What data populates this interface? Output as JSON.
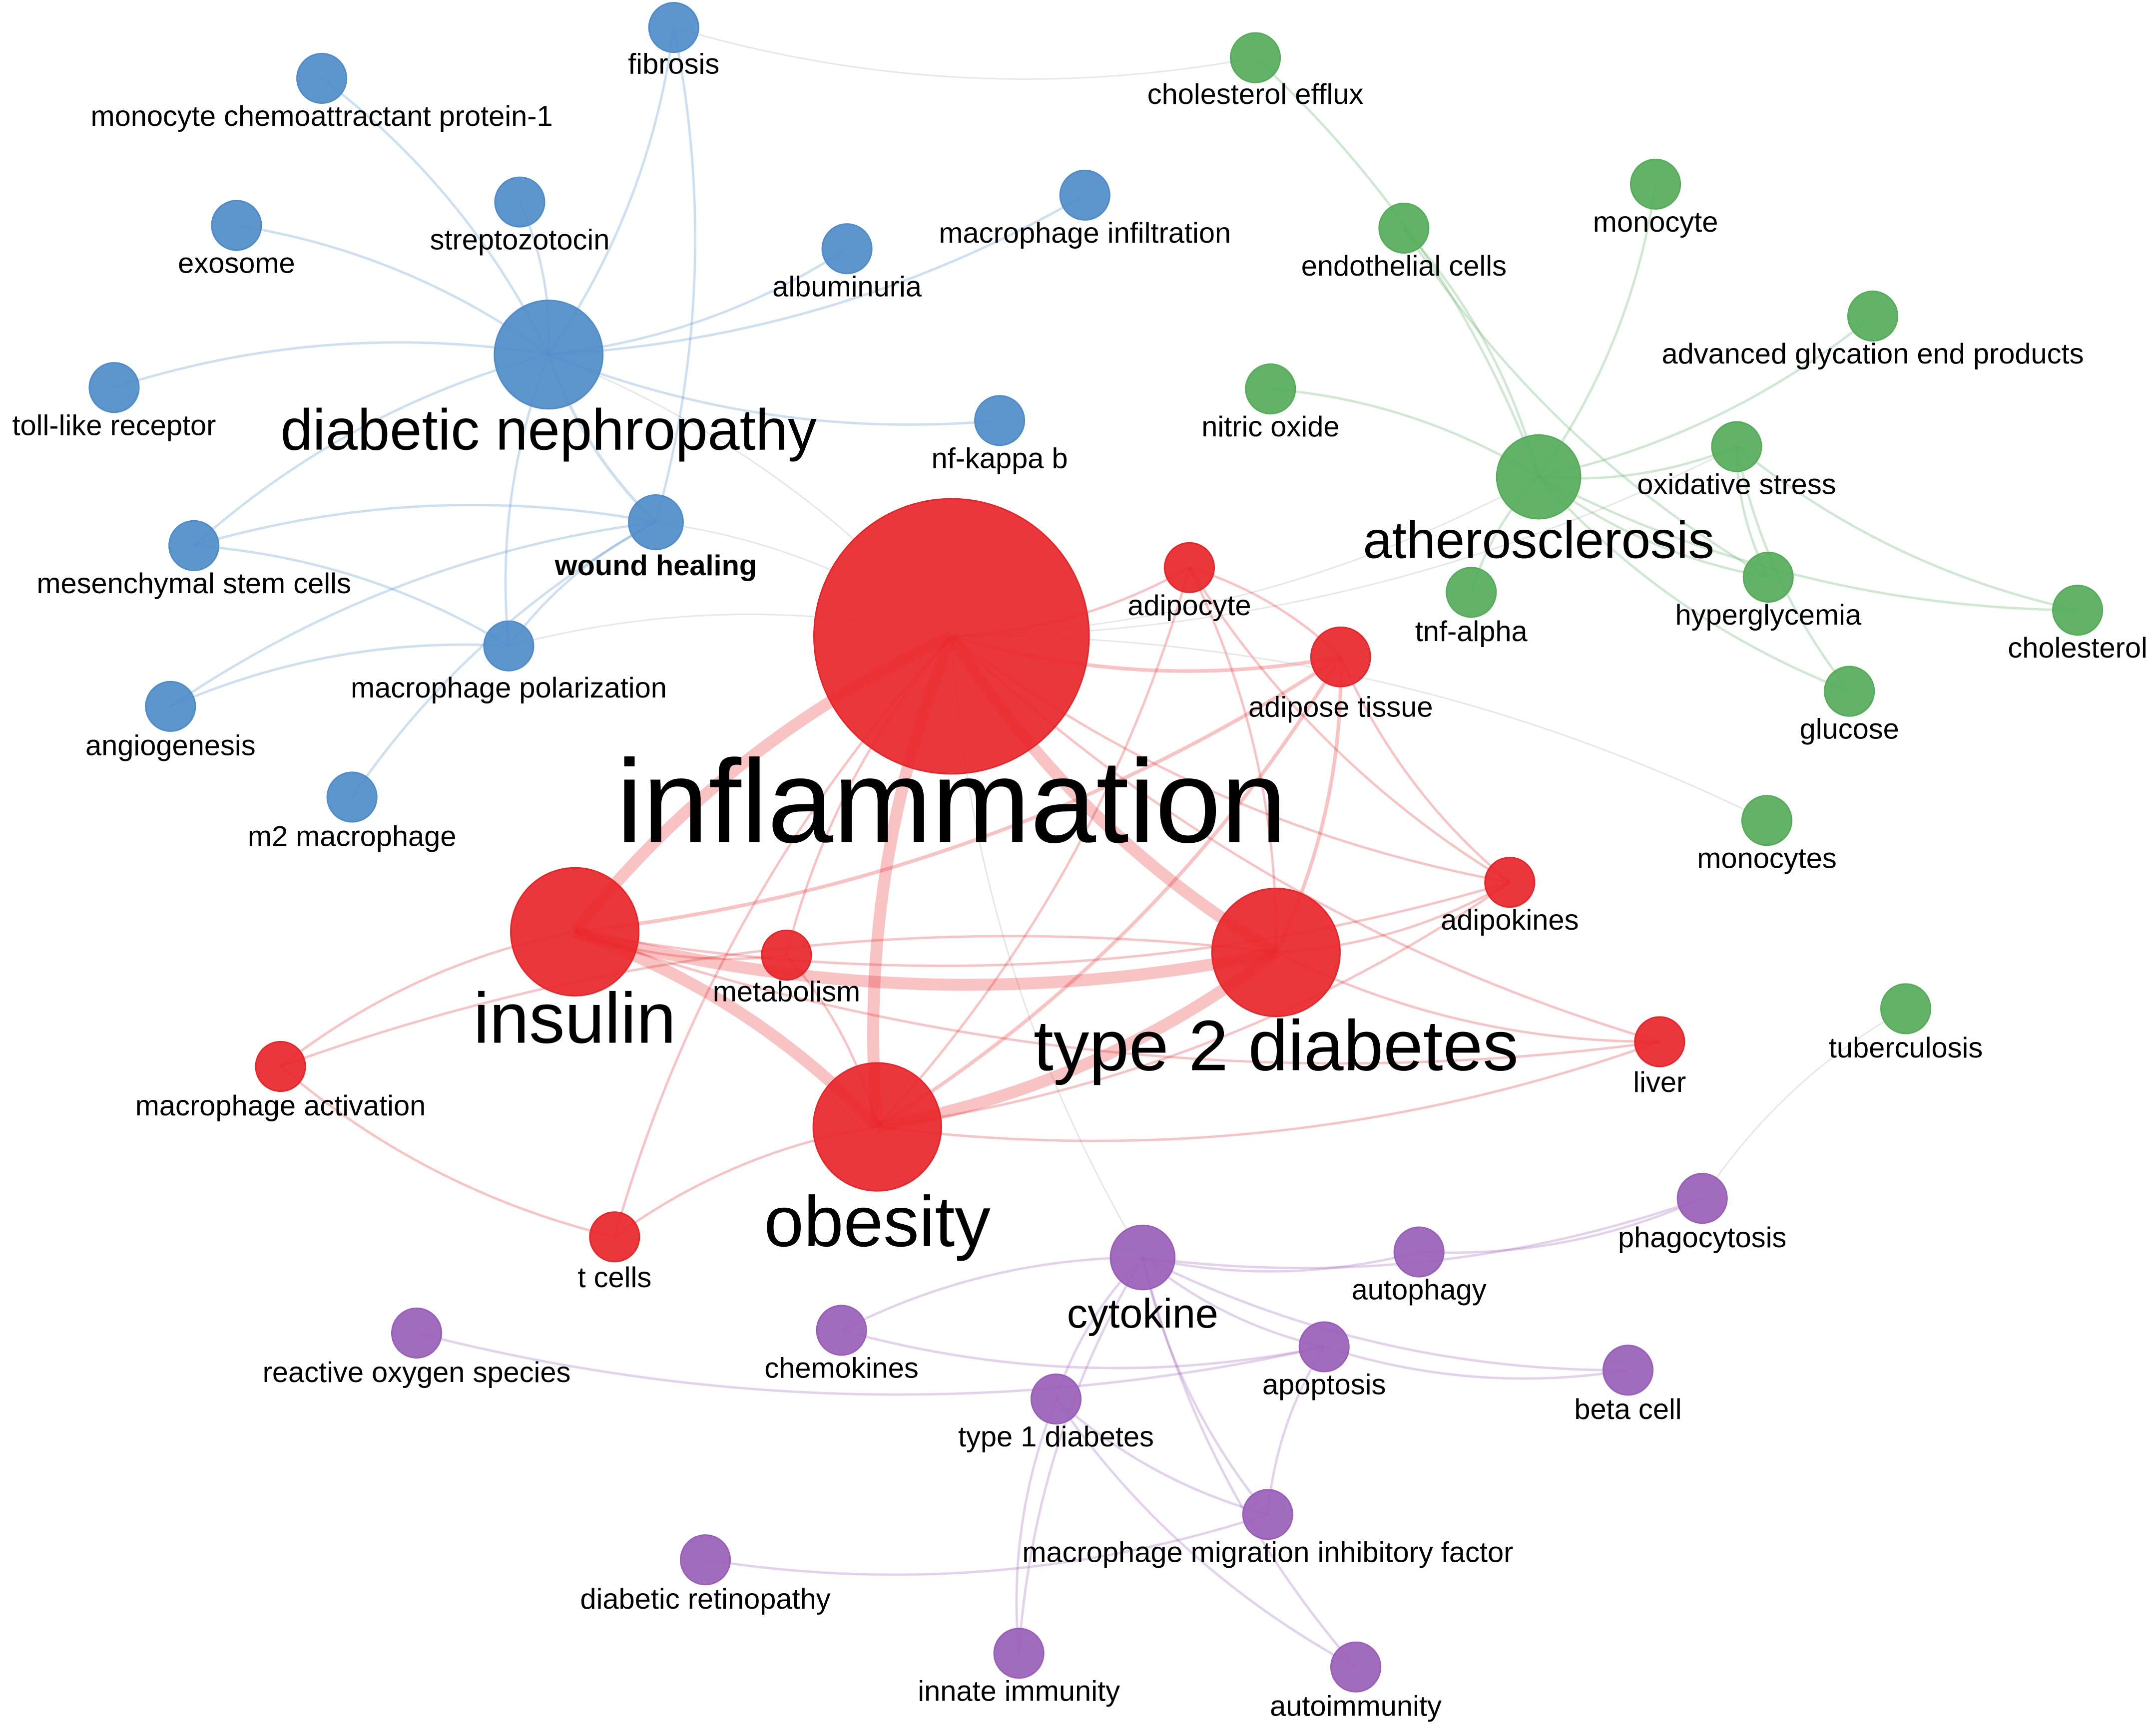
{
  "clusters": {
    "red": {
      "color": "#e8262a"
    },
    "blue": {
      "color": "#4f8cc9"
    },
    "green": {
      "color": "#55ad5a"
    },
    "purple": {
      "color": "#9a5fb8"
    }
  },
  "nodes": [
    {
      "id": "inflammation",
      "label": "inflammation",
      "cluster": "red",
      "weight": 1.0
    },
    {
      "id": "insulin",
      "label": "insulin",
      "cluster": "red",
      "weight": 0.4
    },
    {
      "id": "t2d",
      "label": "type 2 diabetes",
      "cluster": "red",
      "weight": 0.4
    },
    {
      "id": "obesity",
      "label": "obesity",
      "cluster": "red",
      "weight": 0.4
    },
    {
      "id": "adipose",
      "label": "adipose tissue",
      "cluster": "red",
      "weight": 0.12
    },
    {
      "id": "adipocyte",
      "label": "adipocyte",
      "cluster": "red",
      "weight": 0.08
    },
    {
      "id": "adipokines",
      "label": "adipokines",
      "cluster": "red",
      "weight": 0.08
    },
    {
      "id": "metabolism",
      "label": "metabolism",
      "cluster": "red",
      "weight": 0.08
    },
    {
      "id": "liver",
      "label": "liver",
      "cluster": "red",
      "weight": 0.08
    },
    {
      "id": "macact",
      "label": "macrophage activation",
      "cluster": "red",
      "weight": 0.08
    },
    {
      "id": "tcells",
      "label": "t cells",
      "cluster": "red",
      "weight": 0.08
    },
    {
      "id": "dn",
      "label": "diabetic nephropathy",
      "cluster": "blue",
      "weight": 0.32
    },
    {
      "id": "wound",
      "label": "wound healing",
      "cluster": "blue",
      "weight": 0.1,
      "bold": true
    },
    {
      "id": "fibrosis",
      "label": "fibrosis",
      "cluster": "blue",
      "weight": 0.08
    },
    {
      "id": "mcp1",
      "label": "monocyte chemoattractant protein-1",
      "cluster": "blue",
      "weight": 0.08
    },
    {
      "id": "strep",
      "label": "streptozotocin",
      "cluster": "blue",
      "weight": 0.08
    },
    {
      "id": "exosome",
      "label": "exosome",
      "cluster": "blue",
      "weight": 0.08
    },
    {
      "id": "albuminuria",
      "label": "albuminuria",
      "cluster": "blue",
      "weight": 0.08
    },
    {
      "id": "macinf",
      "label": "macrophage infiltration",
      "cluster": "blue",
      "weight": 0.08
    },
    {
      "id": "tlr",
      "label": "toll-like receptor",
      "cluster": "blue",
      "weight": 0.08
    },
    {
      "id": "nfkb",
      "label": "nf-kappa b",
      "cluster": "blue",
      "weight": 0.08
    },
    {
      "id": "msc",
      "label": "mesenchymal stem cells",
      "cluster": "blue",
      "weight": 0.08
    },
    {
      "id": "macpol",
      "label": "macrophage polarization",
      "cluster": "blue",
      "weight": 0.08
    },
    {
      "id": "angio",
      "label": "angiogenesis",
      "cluster": "blue",
      "weight": 0.08
    },
    {
      "id": "m2",
      "label": "m2 macrophage",
      "cluster": "blue",
      "weight": 0.08
    },
    {
      "id": "athero",
      "label": "atherosclerosis",
      "cluster": "green",
      "weight": 0.22
    },
    {
      "id": "cholefflux",
      "label": "cholesterol efflux",
      "cluster": "green",
      "weight": 0.08
    },
    {
      "id": "monocyte",
      "label": "monocyte",
      "cluster": "green",
      "weight": 0.08
    },
    {
      "id": "endo",
      "label": "endothelial cells",
      "cluster": "green",
      "weight": 0.08
    },
    {
      "id": "age",
      "label": "advanced glycation end products",
      "cluster": "green",
      "weight": 0.08
    },
    {
      "id": "no",
      "label": "nitric oxide",
      "cluster": "green",
      "weight": 0.08
    },
    {
      "id": "ox",
      "label": "oxidative stress",
      "cluster": "green",
      "weight": 0.08
    },
    {
      "id": "tnf",
      "label": "tnf-alpha",
      "cluster": "green",
      "weight": 0.08
    },
    {
      "id": "hyper",
      "label": "hyperglycemia",
      "cluster": "green",
      "weight": 0.08
    },
    {
      "id": "chol",
      "label": "cholesterol",
      "cluster": "green",
      "weight": 0.08
    },
    {
      "id": "glucose",
      "label": "glucose",
      "cluster": "green",
      "weight": 0.08
    },
    {
      "id": "monocytes",
      "label": "monocytes",
      "cluster": "green",
      "weight": 0.08
    },
    {
      "id": "tb",
      "label": "tuberculosis",
      "cluster": "green",
      "weight": 0.08
    },
    {
      "id": "cytokine",
      "label": "cytokine",
      "cluster": "purple",
      "weight": 0.14
    },
    {
      "id": "phago",
      "label": "phagocytosis",
      "cluster": "purple",
      "weight": 0.08
    },
    {
      "id": "autoph",
      "label": "autophagy",
      "cluster": "purple",
      "weight": 0.08
    },
    {
      "id": "ros",
      "label": "reactive oxygen species",
      "cluster": "purple",
      "weight": 0.08
    },
    {
      "id": "chemok",
      "label": "chemokines",
      "cluster": "purple",
      "weight": 0.08
    },
    {
      "id": "apop",
      "label": "apoptosis",
      "cluster": "purple",
      "weight": 0.08
    },
    {
      "id": "beta",
      "label": "beta cell",
      "cluster": "purple",
      "weight": 0.08
    },
    {
      "id": "t1d",
      "label": "type 1 diabetes",
      "cluster": "purple",
      "weight": 0.08
    },
    {
      "id": "mif",
      "label": "macrophage migration inhibitory factor",
      "cluster": "purple",
      "weight": 0.08
    },
    {
      "id": "dr",
      "label": "diabetic retinopathy",
      "cluster": "purple",
      "weight": 0.08
    },
    {
      "id": "innate",
      "label": "innate immunity",
      "cluster": "purple",
      "weight": 0.08
    },
    {
      "id": "autoimm",
      "label": "autoimmunity",
      "cluster": "purple",
      "weight": 0.08
    }
  ],
  "edges": [
    [
      "inflammation",
      "obesity"
    ],
    [
      "inflammation",
      "insulin"
    ],
    [
      "inflammation",
      "t2d"
    ],
    [
      "inflammation",
      "adipose"
    ],
    [
      "inflammation",
      "adipocyte"
    ],
    [
      "inflammation",
      "metabolism"
    ],
    [
      "inflammation",
      "adipokines"
    ],
    [
      "inflammation",
      "liver"
    ],
    [
      "inflammation",
      "athero"
    ],
    [
      "inflammation",
      "dn"
    ],
    [
      "inflammation",
      "wound"
    ],
    [
      "inflammation",
      "cytokine"
    ],
    [
      "inflammation",
      "macpol"
    ],
    [
      "inflammation",
      "tcells"
    ],
    [
      "inflammation",
      "ox"
    ],
    [
      "obesity",
      "insulin"
    ],
    [
      "obesity",
      "t2d"
    ],
    [
      "obesity",
      "adipose"
    ],
    [
      "obesity",
      "adipokines"
    ],
    [
      "obesity",
      "metabolism"
    ],
    [
      "obesity",
      "adipocyte"
    ],
    [
      "obesity",
      "tcells"
    ],
    [
      "obesity",
      "liver"
    ],
    [
      "insulin",
      "t2d"
    ],
    [
      "insulin",
      "metabolism"
    ],
    [
      "insulin",
      "adipose"
    ],
    [
      "insulin",
      "macact"
    ],
    [
      "insulin",
      "adipokines"
    ],
    [
      "insulin",
      "liver"
    ],
    [
      "t2d",
      "adipose"
    ],
    [
      "t2d",
      "adipocyte"
    ],
    [
      "t2d",
      "adipokines"
    ],
    [
      "t2d",
      "liver"
    ],
    [
      "t2d",
      "macact"
    ],
    [
      "adipose",
      "adipocyte"
    ],
    [
      "adipose",
      "adipokines"
    ],
    [
      "adipocyte",
      "adipokines"
    ],
    [
      "macact",
      "tcells"
    ],
    [
      "dn",
      "fibrosis"
    ],
    [
      "dn",
      "mcp1"
    ],
    [
      "dn",
      "strep"
    ],
    [
      "dn",
      "exosome"
    ],
    [
      "dn",
      "albuminuria"
    ],
    [
      "dn",
      "macinf"
    ],
    [
      "dn",
      "tlr"
    ],
    [
      "dn",
      "nfkb"
    ],
    [
      "dn",
      "wound"
    ],
    [
      "dn",
      "macpol"
    ],
    [
      "dn",
      "msc"
    ],
    [
      "wound",
      "msc"
    ],
    [
      "wound",
      "macpol"
    ],
    [
      "wound",
      "angio"
    ],
    [
      "wound",
      "m2"
    ],
    [
      "wound",
      "fibrosis"
    ],
    [
      "macpol",
      "angio"
    ],
    [
      "macpol",
      "msc"
    ],
    [
      "fibrosis",
      "cholefflux"
    ],
    [
      "athero",
      "cholefflux"
    ],
    [
      "athero",
      "monocyte"
    ],
    [
      "athero",
      "endo"
    ],
    [
      "athero",
      "ox"
    ],
    [
      "athero",
      "hyper"
    ],
    [
      "athero",
      "chol"
    ],
    [
      "athero",
      "glucose"
    ],
    [
      "athero",
      "no"
    ],
    [
      "athero",
      "tnf"
    ],
    [
      "athero",
      "age"
    ],
    [
      "ox",
      "chol"
    ],
    [
      "ox",
      "hyper"
    ],
    [
      "ox",
      "glucose"
    ],
    [
      "endo",
      "hyper"
    ],
    [
      "monocytes",
      "inflammation"
    ],
    [
      "tb",
      "phago"
    ],
    [
      "cytokine",
      "t1d"
    ],
    [
      "cytokine",
      "apop"
    ],
    [
      "cytokine",
      "autoph"
    ],
    [
      "cytokine",
      "mif"
    ],
    [
      "cytokine",
      "innate"
    ],
    [
      "cytokine",
      "chemok"
    ],
    [
      "cytokine",
      "autoimm"
    ],
    [
      "cytokine",
      "beta"
    ],
    [
      "cytokine",
      "phago"
    ],
    [
      "t1d",
      "mif"
    ],
    [
      "t1d",
      "innate"
    ],
    [
      "t1d",
      "autoimm"
    ],
    [
      "apop",
      "beta"
    ],
    [
      "apop",
      "mif"
    ],
    [
      "autoph",
      "phago"
    ],
    [
      "chemok",
      "apop"
    ],
    [
      "dr",
      "mif"
    ],
    [
      "ros",
      "apop"
    ]
  ]
}
